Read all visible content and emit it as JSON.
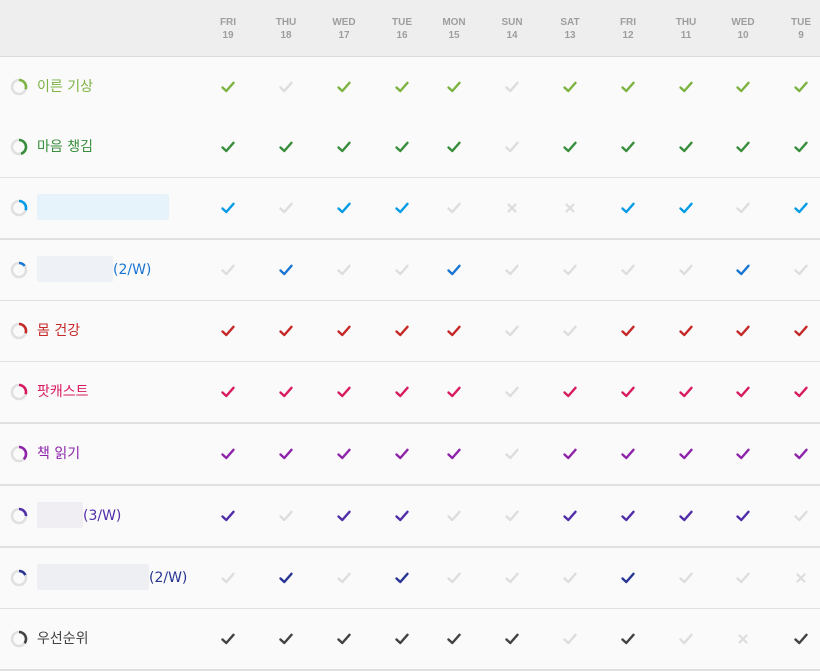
{
  "days": [
    {
      "dow": "FRI",
      "date": "19"
    },
    {
      "dow": "THU",
      "date": "18"
    },
    {
      "dow": "WED",
      "date": "17"
    },
    {
      "dow": "TUE",
      "date": "16"
    },
    {
      "dow": "MON",
      "date": "15"
    },
    {
      "dow": "SUN",
      "date": "14"
    },
    {
      "dow": "SAT",
      "date": "13"
    },
    {
      "dow": "FRI",
      "date": "12"
    },
    {
      "dow": "THU",
      "date": "11"
    },
    {
      "dow": "WED",
      "date": "10"
    },
    {
      "dow": "TUE",
      "date": "9"
    }
  ],
  "habits": [
    {
      "name": "이른 기상",
      "suffix": "",
      "color": "#7cb342",
      "score": 0.3,
      "checks": [
        "y",
        "n",
        "y",
        "y",
        "y",
        "n",
        "y",
        "y",
        "y",
        "y",
        "y"
      ]
    },
    {
      "name": "마음 챙김",
      "suffix": "",
      "color": "#388e3c",
      "score": 0.45,
      "checks": [
        "y",
        "y",
        "y",
        "y",
        "y",
        "n",
        "y",
        "y",
        "y",
        "y",
        "y"
      ]
    },
    {
      "name": "",
      "suffix": "",
      "color": "#039be5",
      "score": 0.3,
      "checks": [
        "y",
        "n",
        "y",
        "y",
        "n",
        "x",
        "x",
        "y",
        "y",
        "n",
        "y"
      ]
    },
    {
      "name": "",
      "suffix": "(2/W)",
      "color": "#1976d2",
      "score": 0.15,
      "checks": [
        "n",
        "y",
        "n",
        "n",
        "y",
        "n",
        "n",
        "n",
        "n",
        "y",
        "n"
      ]
    },
    {
      "name": "몸 건강",
      "suffix": "",
      "color": "#c62828",
      "score": 0.3,
      "checks": [
        "y",
        "y",
        "y",
        "y",
        "y",
        "n",
        "n",
        "y",
        "y",
        "y",
        "y"
      ]
    },
    {
      "name": "팟캐스트",
      "suffix": "",
      "color": "#d81b60",
      "score": 0.3,
      "checks": [
        "y",
        "y",
        "y",
        "y",
        "y",
        "n",
        "y",
        "y",
        "y",
        "y",
        "y"
      ]
    },
    {
      "name": "책 읽기",
      "suffix": "",
      "color": "#8e24aa",
      "score": 0.38,
      "checks": [
        "y",
        "y",
        "y",
        "y",
        "y",
        "n",
        "y",
        "y",
        "y",
        "y",
        "y"
      ]
    },
    {
      "name": "",
      "suffix": "(3/W)",
      "color": "#512da8",
      "score": 0.25,
      "checks": [
        "y",
        "n",
        "y",
        "y",
        "n",
        "n",
        "y",
        "y",
        "y",
        "y",
        "n"
      ]
    },
    {
      "name": "",
      "suffix": "(2/W)",
      "color": "#283593",
      "score": 0.18,
      "checks": [
        "n",
        "y",
        "n",
        "y",
        "n",
        "n",
        "n",
        "y",
        "n",
        "n",
        "x"
      ]
    },
    {
      "name": "우선순위",
      "suffix": "",
      "color": "#424242",
      "score": 0.35,
      "checks": [
        "y",
        "y",
        "y",
        "y",
        "y",
        "y",
        "n",
        "y",
        "n",
        "x",
        "y"
      ]
    }
  ]
}
